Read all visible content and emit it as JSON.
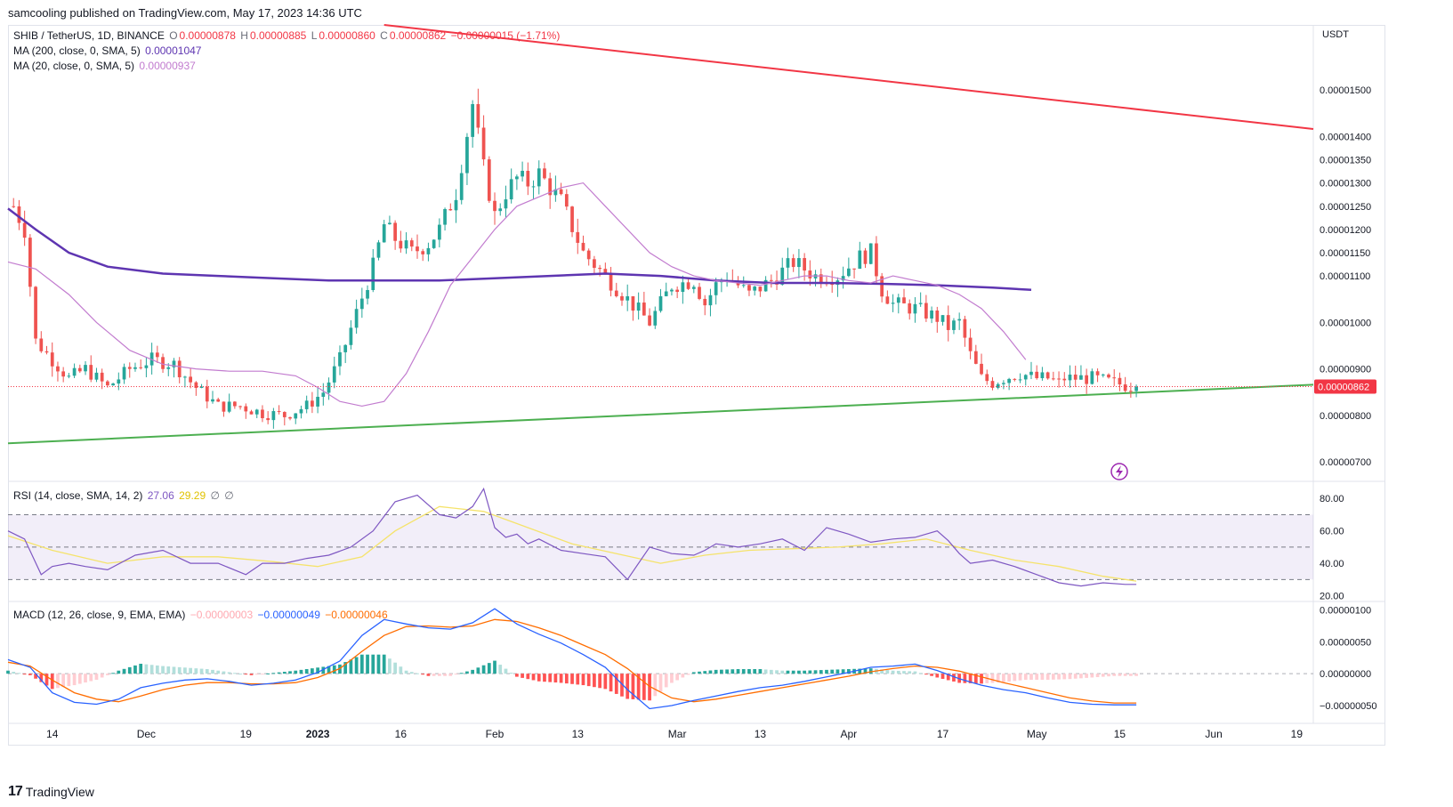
{
  "header": {
    "published_text": "samcooling published on TradingView.com, May 17, 2023 14:36 UTC"
  },
  "footer": {
    "brand": "TradingView",
    "logo_glyph": "17"
  },
  "main_legend": {
    "symbol": "SHIB / TetherUS, 1D, BINANCE",
    "o_label": "O",
    "o_value": "0.00000878",
    "h_label": "H",
    "h_value": "0.00000885",
    "l_label": "L",
    "l_value": "0.00000860",
    "c_label": "C",
    "c_value": "0.00000862",
    "change": "−0.00000015 (−1.71%)",
    "ma200_label": "MA (200, close, 0, SMA, 5)",
    "ma200_value": "0.00001047",
    "ma20_label": "MA (20, close, 0, SMA, 5)",
    "ma20_value": "0.00000937"
  },
  "rsi_legend": {
    "label": "RSI (14, close, SMA, 14, 2)",
    "rsi_value": "27.06",
    "sma_value": "29.29",
    "extra1": "∅",
    "extra2": "∅"
  },
  "macd_legend": {
    "label": "MACD (12, 26, close, 9, EMA, EMA)",
    "hist_value": "−0.00000003",
    "macd_value": "−0.00000049",
    "signal_value": "−0.00000046"
  },
  "colors": {
    "up": "#26a69a",
    "down": "#ef5350",
    "ma200": "#5e35b1",
    "ma20": "#c27ccf",
    "resistance": "#f23645",
    "support": "#4caf50",
    "rsi": "#7e57c2",
    "rsi_ma": "#f5e36b",
    "macd": "#2962ff",
    "signal": "#ff6d00",
    "hist_up": "#26a69a",
    "hist_up_light": "#b2dfdb",
    "hist_down": "#ff5252",
    "hist_down_light": "#ffcdd2",
    "price_badge": "#f23645"
  },
  "icon": "lightning-bolt-icon",
  "chart_data": [
    {
      "type": "candlestick",
      "title": "SHIB / TetherUS, 1D, BINANCE",
      "price_unit_label": "USDT",
      "y_ticks": [
        "0.00001500",
        "0.00001400",
        "0.00001350",
        "0.00001300",
        "0.00001250",
        "0.00001200",
        "0.00001150",
        "0.00001100",
        "0.00001000",
        "0.00000900",
        "0.00000800",
        "0.00000700"
      ],
      "y_tick_values": [
        1500,
        1400,
        1350,
        1300,
        1250,
        1200,
        1150,
        1100,
        1000,
        900,
        800,
        700
      ],
      "x_ticks": [
        "14",
        "Dec",
        "19",
        "2023",
        "16",
        "Feb",
        "13",
        "Mar",
        "13",
        "Apr",
        "17",
        "May",
        "15",
        "Jun",
        "19"
      ],
      "x_tick_days": [
        0,
        17,
        35,
        48,
        63,
        80,
        95,
        113,
        128,
        144,
        161,
        178,
        193,
        210,
        225
      ],
      "ylim": [
        660,
        1640
      ],
      "xlim": [
        -8,
        228
      ],
      "last_price_label": "0.00000862",
      "last_price": 862,
      "value_scale_note": "prices in units of 1e-8 USDT",
      "close_anchors_day": [
        -7,
        -5,
        -3,
        0,
        3,
        6,
        10,
        14,
        18,
        22,
        26,
        30,
        34,
        38,
        42,
        46,
        49,
        52,
        55,
        58,
        60,
        62,
        65,
        68,
        70,
        73,
        76,
        78,
        80,
        82,
        84,
        86,
        88,
        92,
        96,
        100,
        104,
        108,
        112,
        116,
        118,
        120,
        122,
        124,
        126,
        130,
        134,
        138,
        142,
        146,
        148,
        150,
        152,
        156,
        160,
        162,
        164,
        166,
        168,
        170,
        172,
        175,
        178,
        180,
        182,
        183,
        184,
        186,
        188,
        190,
        192,
        194,
        196
      ],
      "close_anchors": [
        1250,
        1200,
        960,
        920,
        880,
        900,
        860,
        900,
        920,
        910,
        860,
        820,
        820,
        805,
        800,
        820,
        850,
        920,
        1020,
        1120,
        1210,
        1180,
        1150,
        1170,
        1200,
        1280,
        1470,
        1330,
        1230,
        1280,
        1310,
        1300,
        1320,
        1260,
        1150,
        1100,
        1050,
        1000,
        1080,
        1090,
        1040,
        1080,
        1100,
        1080,
        1060,
        1090,
        1130,
        1100,
        1100,
        1140,
        1150,
        1070,
        1040,
        1030,
        1010,
        990,
        1000,
        930,
        880,
        870,
        880,
        890,
        880,
        880,
        870,
        880,
        880,
        880,
        880,
        875,
        870,
        865,
        862
      ],
      "ma200_day": [
        -8,
        -3,
        3,
        10,
        20,
        30,
        40,
        50,
        60,
        70,
        80,
        90,
        100,
        110,
        120,
        130,
        140,
        150,
        160,
        170,
        177
      ],
      "ma200": [
        1245,
        1200,
        1150,
        1120,
        1105,
        1100,
        1095,
        1090,
        1090,
        1090,
        1095,
        1100,
        1105,
        1100,
        1090,
        1085,
        1085,
        1083,
        1080,
        1075,
        1070
      ],
      "ma20_day": [
        -8,
        -3,
        3,
        8,
        14,
        20,
        26,
        32,
        38,
        44,
        48,
        52,
        56,
        60,
        64,
        68,
        72,
        76,
        80,
        84,
        88,
        92,
        96,
        100,
        104,
        108,
        112,
        116,
        120,
        124,
        128,
        132,
        136,
        140,
        144,
        148,
        152,
        156,
        160,
        164,
        168,
        172,
        176
      ],
      "ma20": [
        1130,
        1115,
        1060,
        1000,
        940,
        910,
        900,
        895,
        895,
        885,
        860,
        830,
        820,
        830,
        890,
        980,
        1080,
        1140,
        1200,
        1250,
        1270,
        1290,
        1300,
        1250,
        1200,
        1150,
        1120,
        1100,
        1090,
        1085,
        1080,
        1090,
        1100,
        1100,
        1090,
        1085,
        1100,
        1090,
        1080,
        1060,
        1030,
        980,
        920
      ],
      "resistance_line": {
        "points": [
          [
            60,
            1640
          ],
          [
            228,
            1416
          ]
        ]
      },
      "support_line": {
        "points": [
          [
            -8,
            740
          ],
          [
            228,
            866
          ]
        ]
      }
    },
    {
      "type": "line",
      "title": "RSI (14, close, SMA, 14, 2)",
      "y_ticks": [
        "80.00",
        "60.00",
        "40.00",
        "20.00"
      ],
      "y_tick_values": [
        80,
        60,
        40,
        20
      ],
      "band": [
        30,
        70
      ],
      "mid": 50,
      "ylim": [
        17,
        90
      ],
      "rsi_day": [
        -8,
        -5,
        -2,
        0,
        3,
        6,
        10,
        15,
        20,
        25,
        30,
        35,
        38,
        42,
        46,
        50,
        54,
        58,
        62,
        66,
        70,
        73,
        76,
        78,
        80,
        82,
        84,
        86,
        88,
        92,
        96,
        100,
        104,
        108,
        112,
        116,
        118,
        120,
        124,
        128,
        132,
        136,
        140,
        144,
        148,
        152,
        156,
        160,
        162,
        164,
        166,
        170,
        174,
        178,
        182,
        186,
        190,
        194,
        196
      ],
      "rsi": [
        60,
        55,
        33,
        38,
        40,
        38,
        36,
        45,
        48,
        40,
        40,
        33,
        40,
        40,
        43,
        45,
        50,
        60,
        78,
        82,
        70,
        68,
        75,
        86,
        62,
        56,
        58,
        52,
        55,
        48,
        46,
        44,
        30,
        50,
        46,
        45,
        48,
        52,
        50,
        52,
        55,
        48,
        62,
        58,
        53,
        55,
        56,
        60,
        54,
        46,
        40,
        42,
        38,
        33,
        28,
        26,
        28,
        27,
        27
      ],
      "rsi_ma_day": [
        -8,
        0,
        10,
        20,
        30,
        40,
        48,
        56,
        62,
        70,
        78,
        86,
        94,
        102,
        110,
        118,
        126,
        134,
        142,
        150,
        158,
        166,
        174,
        182,
        190,
        196
      ],
      "rsi_ma": [
        57,
        48,
        40,
        44,
        44,
        41,
        38,
        44,
        60,
        75,
        72,
        62,
        52,
        46,
        40,
        45,
        48,
        49,
        50,
        52,
        55,
        48,
        42,
        38,
        32,
        29
      ]
    },
    {
      "type": "bar+line",
      "title": "MACD (12, 26, close, 9, EMA, EMA)",
      "y_ticks": [
        "0.00000100",
        "0.00000050",
        "0.00000000",
        "−0.00000050"
      ],
      "y_tick_values": [
        100,
        50,
        0,
        -50
      ],
      "ylim": [
        -78,
        112
      ],
      "macd_day": [
        -8,
        -4,
        0,
        4,
        8,
        12,
        16,
        20,
        24,
        28,
        32,
        36,
        40,
        44,
        48,
        52,
        56,
        60,
        64,
        68,
        72,
        76,
        80,
        84,
        88,
        92,
        96,
        100,
        104,
        108,
        112,
        116,
        120,
        124,
        128,
        132,
        136,
        140,
        144,
        148,
        152,
        156,
        160,
        164,
        168,
        172,
        176,
        180,
        184,
        188,
        192,
        196
      ],
      "macd": [
        22,
        10,
        -30,
        -45,
        -48,
        -40,
        -22,
        -15,
        -10,
        -8,
        -12,
        -18,
        -15,
        -10,
        2,
        20,
        60,
        85,
        78,
        72,
        70,
        80,
        102,
        78,
        62,
        48,
        30,
        10,
        -25,
        -55,
        -50,
        -42,
        -35,
        -28,
        -22,
        -18,
        -12,
        -5,
        2,
        10,
        12,
        15,
        5,
        -8,
        -18,
        -25,
        -30,
        -38,
        -45,
        -48,
        -49,
        -49
      ],
      "signal": [
        18,
        12,
        -10,
        -30,
        -40,
        -44,
        -35,
        -25,
        -18,
        -14,
        -14,
        -16,
        -16,
        -14,
        -6,
        8,
        35,
        60,
        74,
        75,
        73,
        75,
        85,
        82,
        72,
        60,
        45,
        30,
        8,
        -20,
        -38,
        -44,
        -40,
        -34,
        -28,
        -22,
        -16,
        -10,
        -4,
        3,
        8,
        12,
        10,
        4,
        -5,
        -14,
        -22,
        -30,
        -38,
        -43,
        -46,
        -46
      ]
    }
  ]
}
